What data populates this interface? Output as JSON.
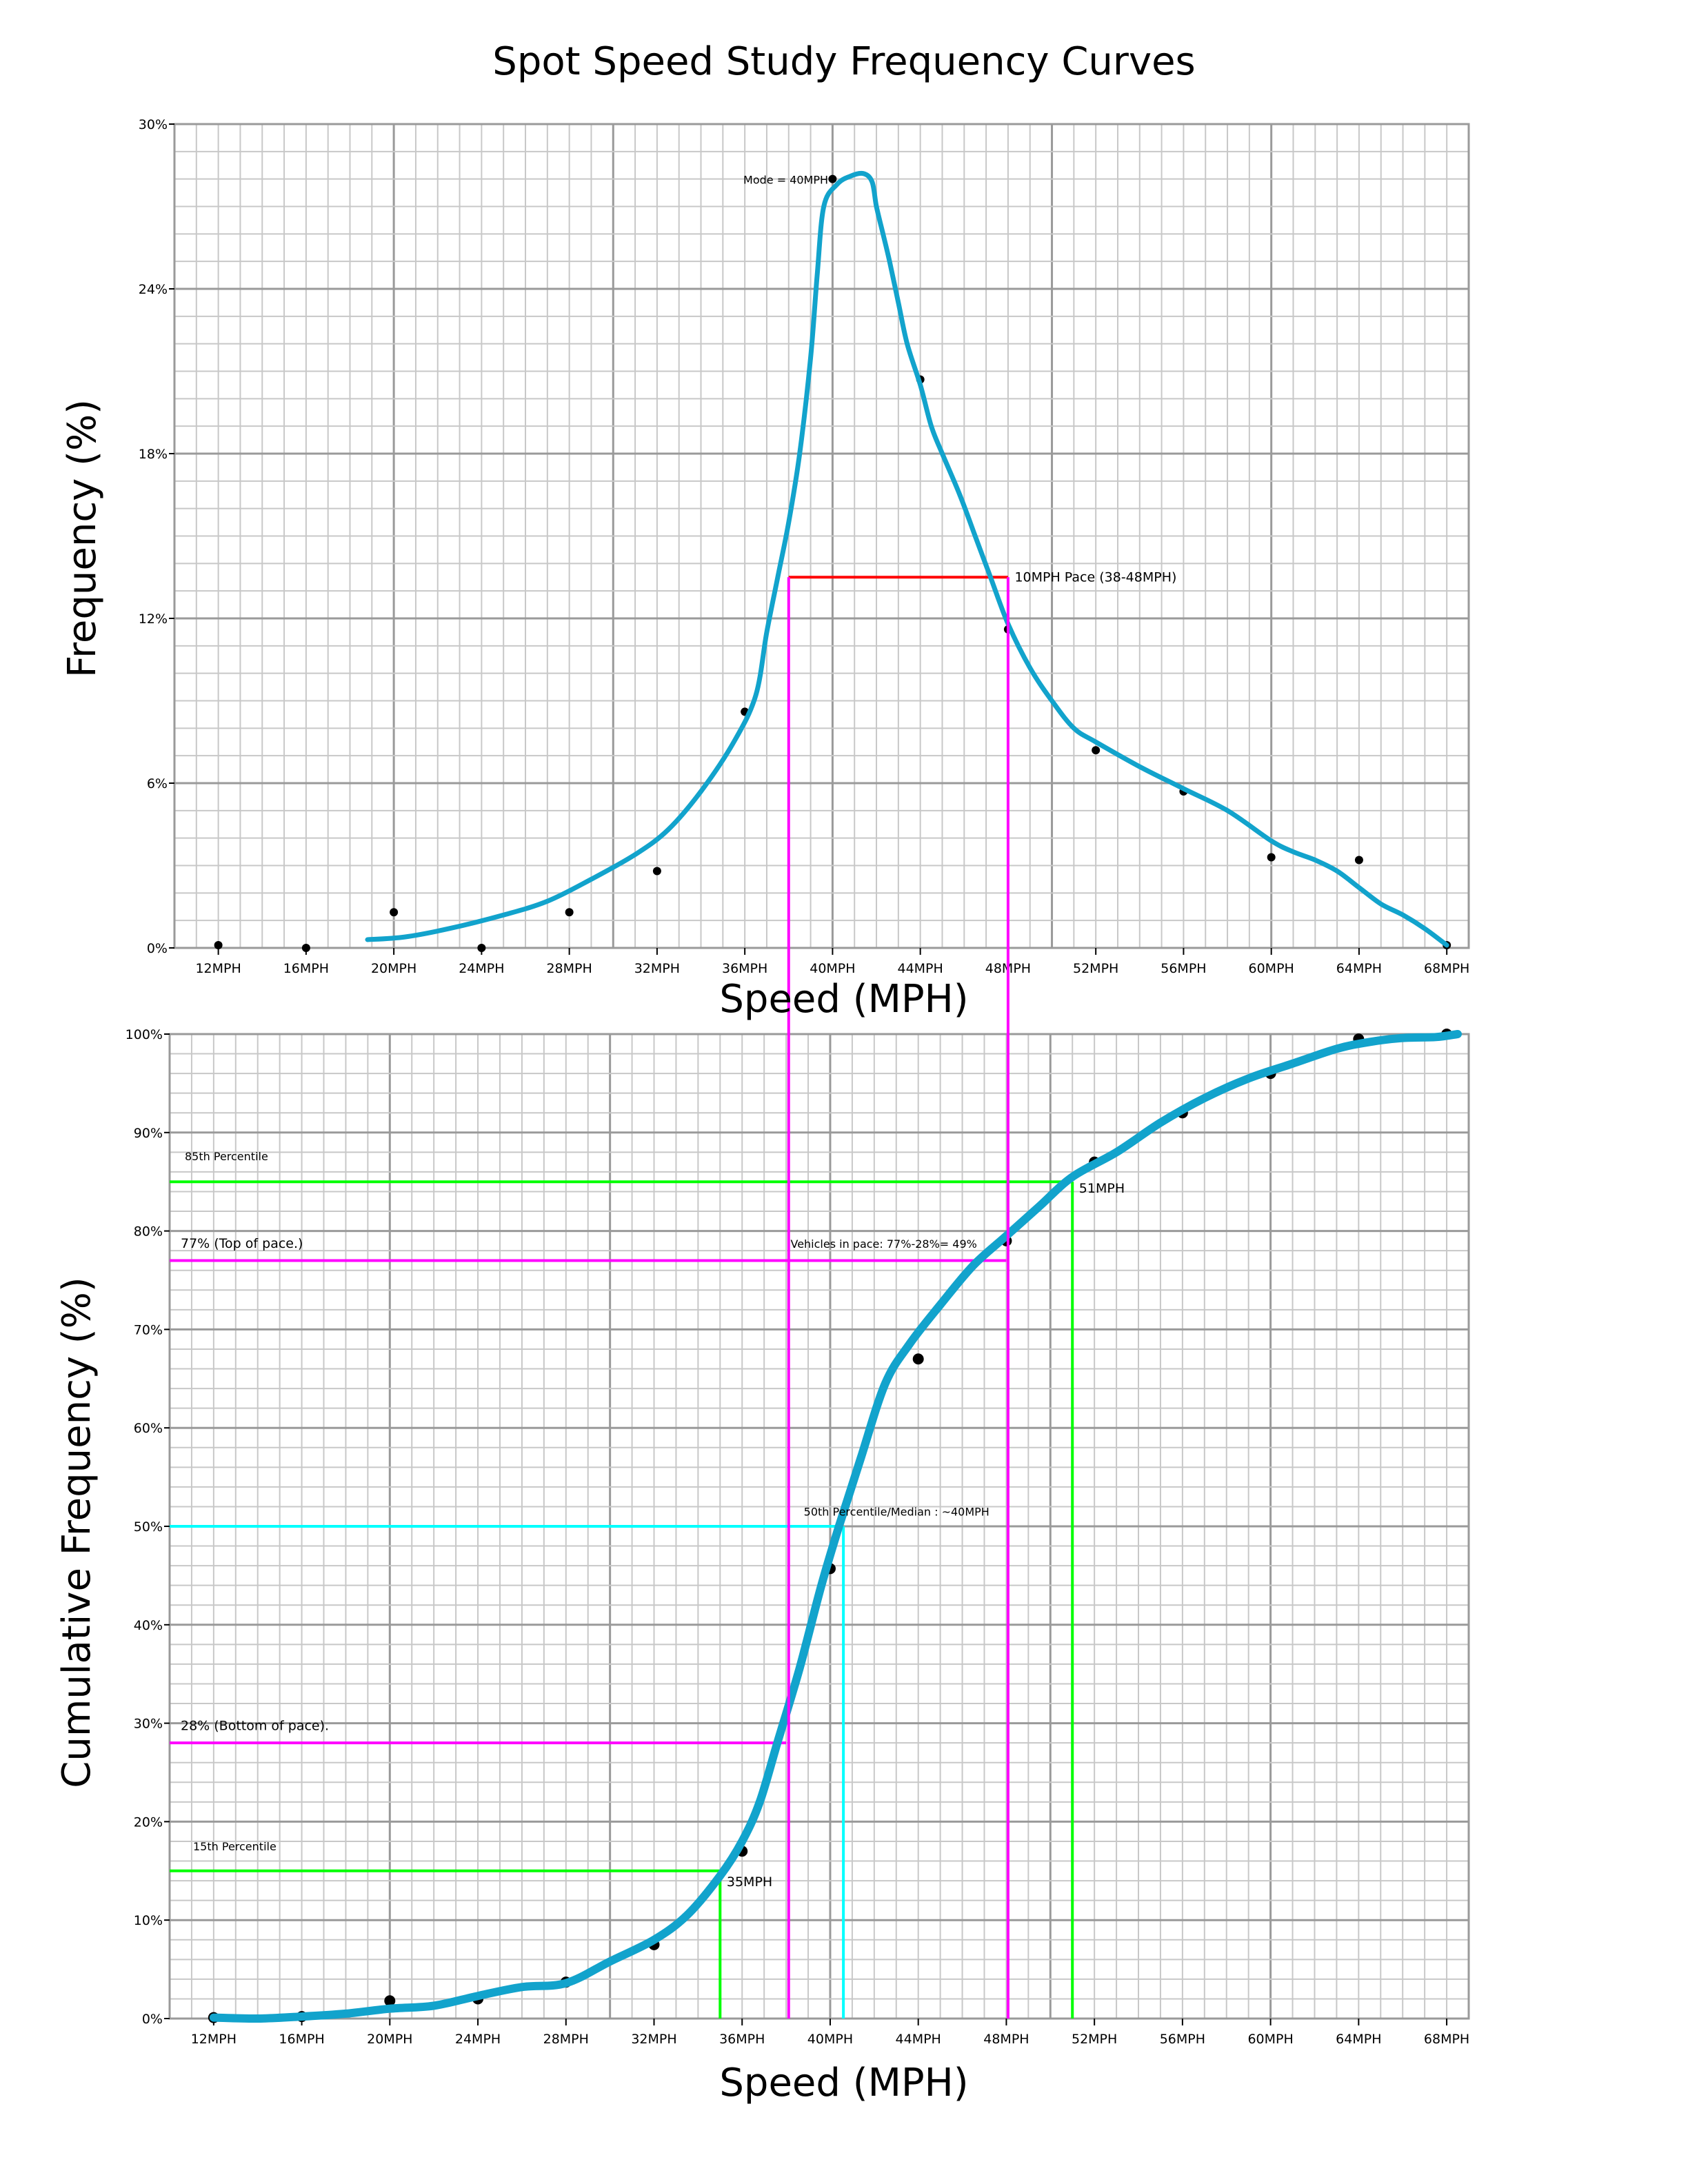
{
  "title": "Spot Speed Study Frequency Curves",
  "colors": {
    "curve": "#12a3cc",
    "pace_top": "#ff0000",
    "pace_lines": "#ff00ff",
    "percentile_lines": "#00ff00",
    "median_lines": "#00ffff",
    "grid_minor": "#c8c8c8",
    "grid_major": "#9a9a9a"
  },
  "chart_data": [
    {
      "type": "line",
      "title": "",
      "xlabel": "Speed (MPH)",
      "ylabel": "Frequency (%)",
      "xlim": [
        10,
        69
      ],
      "ylim": [
        0,
        30
      ],
      "grid": true,
      "x_ticks": [
        "12MPH",
        "16MPH",
        "20MPH",
        "24MPH",
        "28MPH",
        "32MPH",
        "36MPH",
        "40MPH",
        "44MPH",
        "48MPH",
        "52MPH",
        "56MPH",
        "60MPH",
        "64MPH",
        "68MPH"
      ],
      "y_ticks": [
        "0%",
        "6%",
        "12%",
        "18%",
        "24%",
        "30%"
      ],
      "points": {
        "x": [
          12,
          16,
          20,
          24,
          28,
          32,
          36,
          40,
          44,
          48,
          52,
          56,
          60,
          64,
          68
        ],
        "y": [
          0.1,
          0.0,
          1.3,
          0.0,
          1.3,
          2.8,
          8.6,
          28.0,
          20.7,
          11.6,
          7.2,
          5.7,
          3.3,
          3.2,
          0.1
        ]
      },
      "series": [
        {
          "x": [
            18.8,
            20.5,
            22.5,
            25,
            27,
            29,
            31,
            32.5,
            34,
            35.5,
            36.5,
            37,
            37.5,
            38,
            38.5,
            39,
            39.3,
            39.6,
            40.2,
            40.8,
            41.4,
            41.8,
            42,
            42.3,
            42.6,
            43,
            43.4,
            44,
            44.5,
            45,
            45.8,
            46.5,
            47.2,
            48,
            49,
            50,
            51,
            52,
            54,
            56,
            58,
            60,
            61,
            62,
            63,
            64,
            65,
            66,
            67,
            68
          ],
          "y": [
            0.3,
            0.4,
            0.7,
            1.2,
            1.7,
            2.5,
            3.4,
            4.3,
            5.7,
            7.5,
            9.2,
            11.5,
            13.5,
            15.5,
            18.0,
            21.5,
            24.5,
            27.0,
            27.8,
            28.1,
            28.2,
            27.9,
            27.0,
            26.0,
            25.0,
            23.5,
            22.0,
            20.5,
            19.0,
            18.0,
            16.5,
            15.0,
            13.5,
            11.8,
            10.2,
            9.0,
            8.0,
            7.5,
            6.6,
            5.8,
            5.0,
            3.9,
            3.5,
            3.2,
            2.8,
            2.2,
            1.6,
            1.2,
            0.7,
            0.1
          ]
        }
      ],
      "annotations": {
        "mode": "Mode = 40MPH",
        "pace": "10MPH Pace (38-48MPH)"
      },
      "pace": {
        "x": [
          38,
          48
        ],
        "y": 13.5
      }
    },
    {
      "type": "line",
      "title": "",
      "xlabel": "Speed (MPH)",
      "ylabel": "Cumulative Frequency (%)",
      "xlim": [
        10,
        69
      ],
      "ylim": [
        0,
        100
      ],
      "grid": true,
      "x_ticks": [
        "12MPH",
        "16MPH",
        "20MPH",
        "24MPH",
        "28MPH",
        "32MPH",
        "36MPH",
        "40MPH",
        "44MPH",
        "48MPH",
        "52MPH",
        "56MPH",
        "60MPH",
        "64MPH",
        "68MPH"
      ],
      "y_ticks": [
        "0%",
        "10%",
        "20%",
        "30%",
        "40%",
        "50%",
        "60%",
        "70%",
        "80%",
        "90%",
        "100%"
      ],
      "points": {
        "x": [
          12,
          16,
          20,
          24,
          28,
          32,
          36,
          40,
          44,
          48,
          52,
          56,
          60,
          64,
          68
        ],
        "y": [
          0.1,
          0.2,
          1.8,
          2.0,
          3.7,
          7.5,
          17.0,
          45.7,
          67.0,
          79.0,
          87.0,
          92.0,
          96.0,
          99.5,
          100.0
        ]
      },
      "series": [
        {
          "x": [
            12,
            14,
            16,
            18,
            20,
            22,
            24,
            26,
            28,
            30,
            32,
            33.5,
            35,
            36,
            36.8,
            37.6,
            38.6,
            39.6,
            40.4,
            41.4,
            42.5,
            43.6,
            45,
            46.5,
            48,
            49.5,
            51,
            53,
            55,
            57,
            59,
            61,
            63,
            64.5,
            66,
            67.5,
            68.5
          ],
          "y": [
            0.1,
            0.0,
            0.2,
            0.5,
            1.0,
            1.3,
            2.3,
            3.2,
            3.6,
            5.8,
            8.0,
            10.5,
            14.5,
            18.0,
            22.0,
            28.0,
            35.5,
            44.0,
            50.0,
            57.0,
            64.5,
            68.5,
            72.5,
            76.5,
            79.5,
            82.5,
            85.5,
            88.0,
            91.0,
            93.5,
            95.5,
            97.0,
            98.5,
            99.2,
            99.6,
            99.7,
            100.0
          ]
        }
      ],
      "annotations": {
        "p85_label": "85th Percentile",
        "p85_value": "51MPH",
        "top_pace": "77% (Top of pace.)",
        "vehicles_in_pace": "Vehicles in pace: 77%-28%= 49%",
        "median": "50th Percentile/Median : ~40MPH",
        "bottom_pace": "28% (Bottom of pace).",
        "p15_label": "15th Percentile",
        "p15_value": "35MPH"
      },
      "reference": {
        "p85": {
          "x": 51,
          "y": 85
        },
        "top_pace": {
          "x": 48,
          "y": 77
        },
        "median": {
          "x": 40.6,
          "y": 50
        },
        "bottom_pace": {
          "x": 38,
          "y": 28
        },
        "p15": {
          "x": 35,
          "y": 15
        }
      }
    }
  ]
}
